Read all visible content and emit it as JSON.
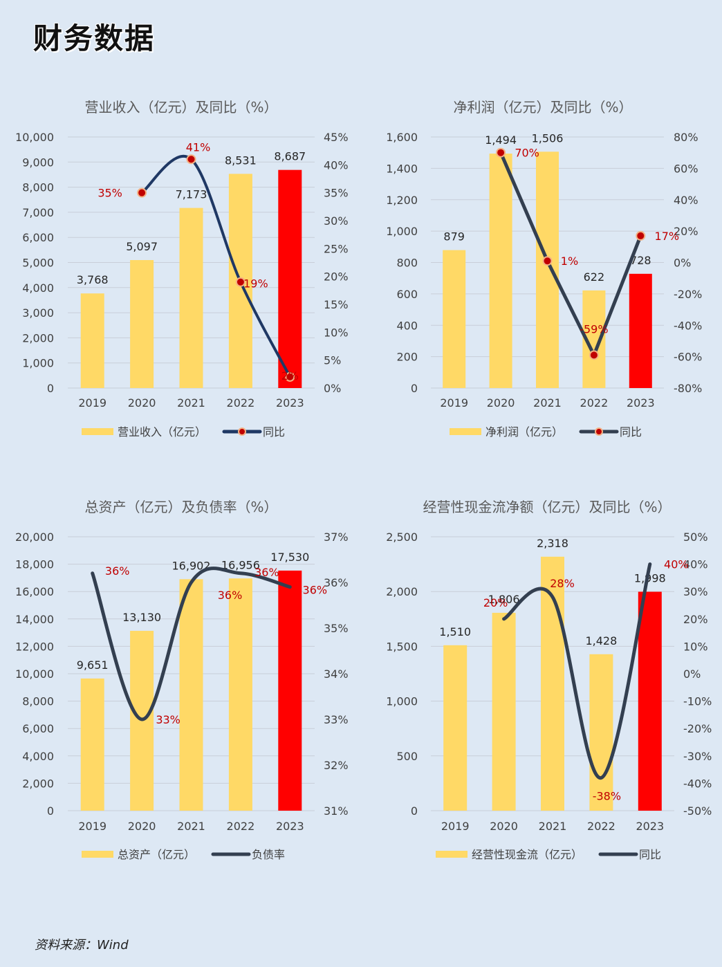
{
  "page": {
    "title": "财务数据",
    "source": "资料来源：Wind"
  },
  "colors": {
    "bar": "#ffd966",
    "bar_highlight": "#ff0000",
    "line": "#1f3864",
    "line_dark": "#333f50",
    "marker": "#c00000",
    "label_red": "#c00000",
    "grid": "#c8ced8",
    "axis_text": "#404040"
  },
  "chart_data": [
    {
      "type": "bar+line",
      "title": "营业收入（亿元）及同比（%）",
      "categories": [
        "2019",
        "2020",
        "2021",
        "2022",
        "2023"
      ],
      "series": [
        {
          "name": "营业收入（亿元）",
          "kind": "bar",
          "axis": "left",
          "values": [
            3768,
            5097,
            7173,
            8531,
            8687
          ],
          "labels": [
            "3,768",
            "5,097",
            "7,173",
            "8,531",
            "8,687"
          ],
          "highlight_index": 4
        },
        {
          "name": "同比",
          "kind": "line",
          "axis": "right",
          "markers": true,
          "values": [
            null,
            35,
            41,
            19,
            2
          ],
          "labels": [
            "",
            "35%",
            "41%",
            "19%",
            "2%"
          ]
        }
      ],
      "left_axis": {
        "min": 0,
        "max": 10000,
        "ticks": [
          "0",
          "1,000",
          "2,000",
          "3,000",
          "4,000",
          "5,000",
          "6,000",
          "7,000",
          "8,000",
          "9,000",
          "10,000"
        ]
      },
      "right_axis": {
        "min": 0,
        "max": 45,
        "ticks": [
          "0%",
          "5%",
          "10%",
          "15%",
          "20%",
          "25%",
          "30%",
          "35%",
          "40%",
          "45%"
        ]
      },
      "legend": [
        {
          "label": "营业收入（亿元）",
          "kind": "bar"
        },
        {
          "label": "同比",
          "kind": "line-marker"
        }
      ],
      "legend_position": "bottom",
      "grid": true
    },
    {
      "type": "bar+line",
      "title": "净利润（亿元）及同比（%）",
      "categories": [
        "2019",
        "2020",
        "2021",
        "2022",
        "2023"
      ],
      "series": [
        {
          "name": "净利润（亿元）",
          "kind": "bar",
          "axis": "left",
          "values": [
            879,
            1494,
            1506,
            622,
            728
          ],
          "labels": [
            "879",
            "1,494",
            "1,506",
            "622",
            "728"
          ],
          "highlight_index": 4
        },
        {
          "name": "同比",
          "kind": "line",
          "axis": "right",
          "markers": true,
          "values": [
            null,
            70,
            1,
            -59,
            17
          ],
          "labels": [
            "",
            "70%",
            "1%",
            "-59%",
            "17%"
          ]
        }
      ],
      "left_axis": {
        "min": 0,
        "max": 1600,
        "ticks": [
          "0",
          "200",
          "400",
          "600",
          "800",
          "1,000",
          "1,200",
          "1,400",
          "1,600"
        ]
      },
      "right_axis": {
        "min": -80,
        "max": 80,
        "ticks": [
          "-80%",
          "-60%",
          "-40%",
          "-20%",
          "0%",
          "20%",
          "40%",
          "60%",
          "80%"
        ]
      },
      "legend": [
        {
          "label": "净利润（亿元）",
          "kind": "bar"
        },
        {
          "label": "同比",
          "kind": "line-marker"
        }
      ],
      "legend_position": "bottom",
      "grid": true
    },
    {
      "type": "bar+line",
      "title": "总资产（亿元）及负债率（%）",
      "categories": [
        "2019",
        "2020",
        "2021",
        "2022",
        "2023"
      ],
      "series": [
        {
          "name": "总资产（亿元）",
          "kind": "bar",
          "axis": "left",
          "values": [
            9651,
            13130,
            16902,
            16956,
            17530
          ],
          "labels": [
            "9,651",
            "13,130",
            "16,902",
            "16,956",
            "17,530"
          ],
          "highlight_index": 4
        },
        {
          "name": "负债率",
          "kind": "line",
          "axis": "right",
          "markers": false,
          "values": [
            36.2,
            33.0,
            36.0,
            36.2,
            35.9
          ],
          "labels": [
            "36%",
            "33%",
            "36%",
            "36%",
            "36%"
          ]
        }
      ],
      "left_axis": {
        "min": 0,
        "max": 20000,
        "ticks": [
          "0",
          "2,000",
          "4,000",
          "6,000",
          "8,000",
          "10,000",
          "12,000",
          "14,000",
          "16,000",
          "18,000",
          "20,000"
        ]
      },
      "right_axis": {
        "min": 31,
        "max": 37,
        "ticks": [
          "31%",
          "32%",
          "33%",
          "34%",
          "35%",
          "36%",
          "37%"
        ]
      },
      "legend": [
        {
          "label": "总资产（亿元）",
          "kind": "bar"
        },
        {
          "label": "负债率",
          "kind": "line"
        }
      ],
      "legend_position": "bottom",
      "grid": true
    },
    {
      "type": "bar+line",
      "title": "经营性现金流净额（亿元）及同比（%）",
      "categories": [
        "2019",
        "2020",
        "2021",
        "2022",
        "2023"
      ],
      "series": [
        {
          "name": "经营性现金流（亿元）",
          "kind": "bar",
          "axis": "left",
          "values": [
            1510,
            1806,
            2318,
            1428,
            1998
          ],
          "labels": [
            "1,510",
            "1,806",
            "2,318",
            "1,428",
            "1,998"
          ],
          "highlight_index": 4
        },
        {
          "name": "同比",
          "kind": "line",
          "axis": "right",
          "markers": false,
          "values": [
            null,
            20,
            28,
            -38,
            40
          ],
          "labels": [
            "",
            "20%",
            "28%",
            "-38%",
            "40%"
          ]
        }
      ],
      "left_axis": {
        "min": 0,
        "max": 2500,
        "ticks": [
          "0",
          "500",
          "1,000",
          "1,500",
          "2,000",
          "2,500"
        ]
      },
      "right_axis": {
        "min": -50,
        "max": 50,
        "ticks": [
          "-50%",
          "-40%",
          "-30%",
          "-20%",
          "-10%",
          "0%",
          "10%",
          "20%",
          "30%",
          "40%",
          "50%"
        ]
      },
      "legend": [
        {
          "label": "经营性现金流（亿元）",
          "kind": "bar"
        },
        {
          "label": "同比",
          "kind": "line"
        }
      ],
      "legend_position": "bottom",
      "grid": true
    }
  ]
}
